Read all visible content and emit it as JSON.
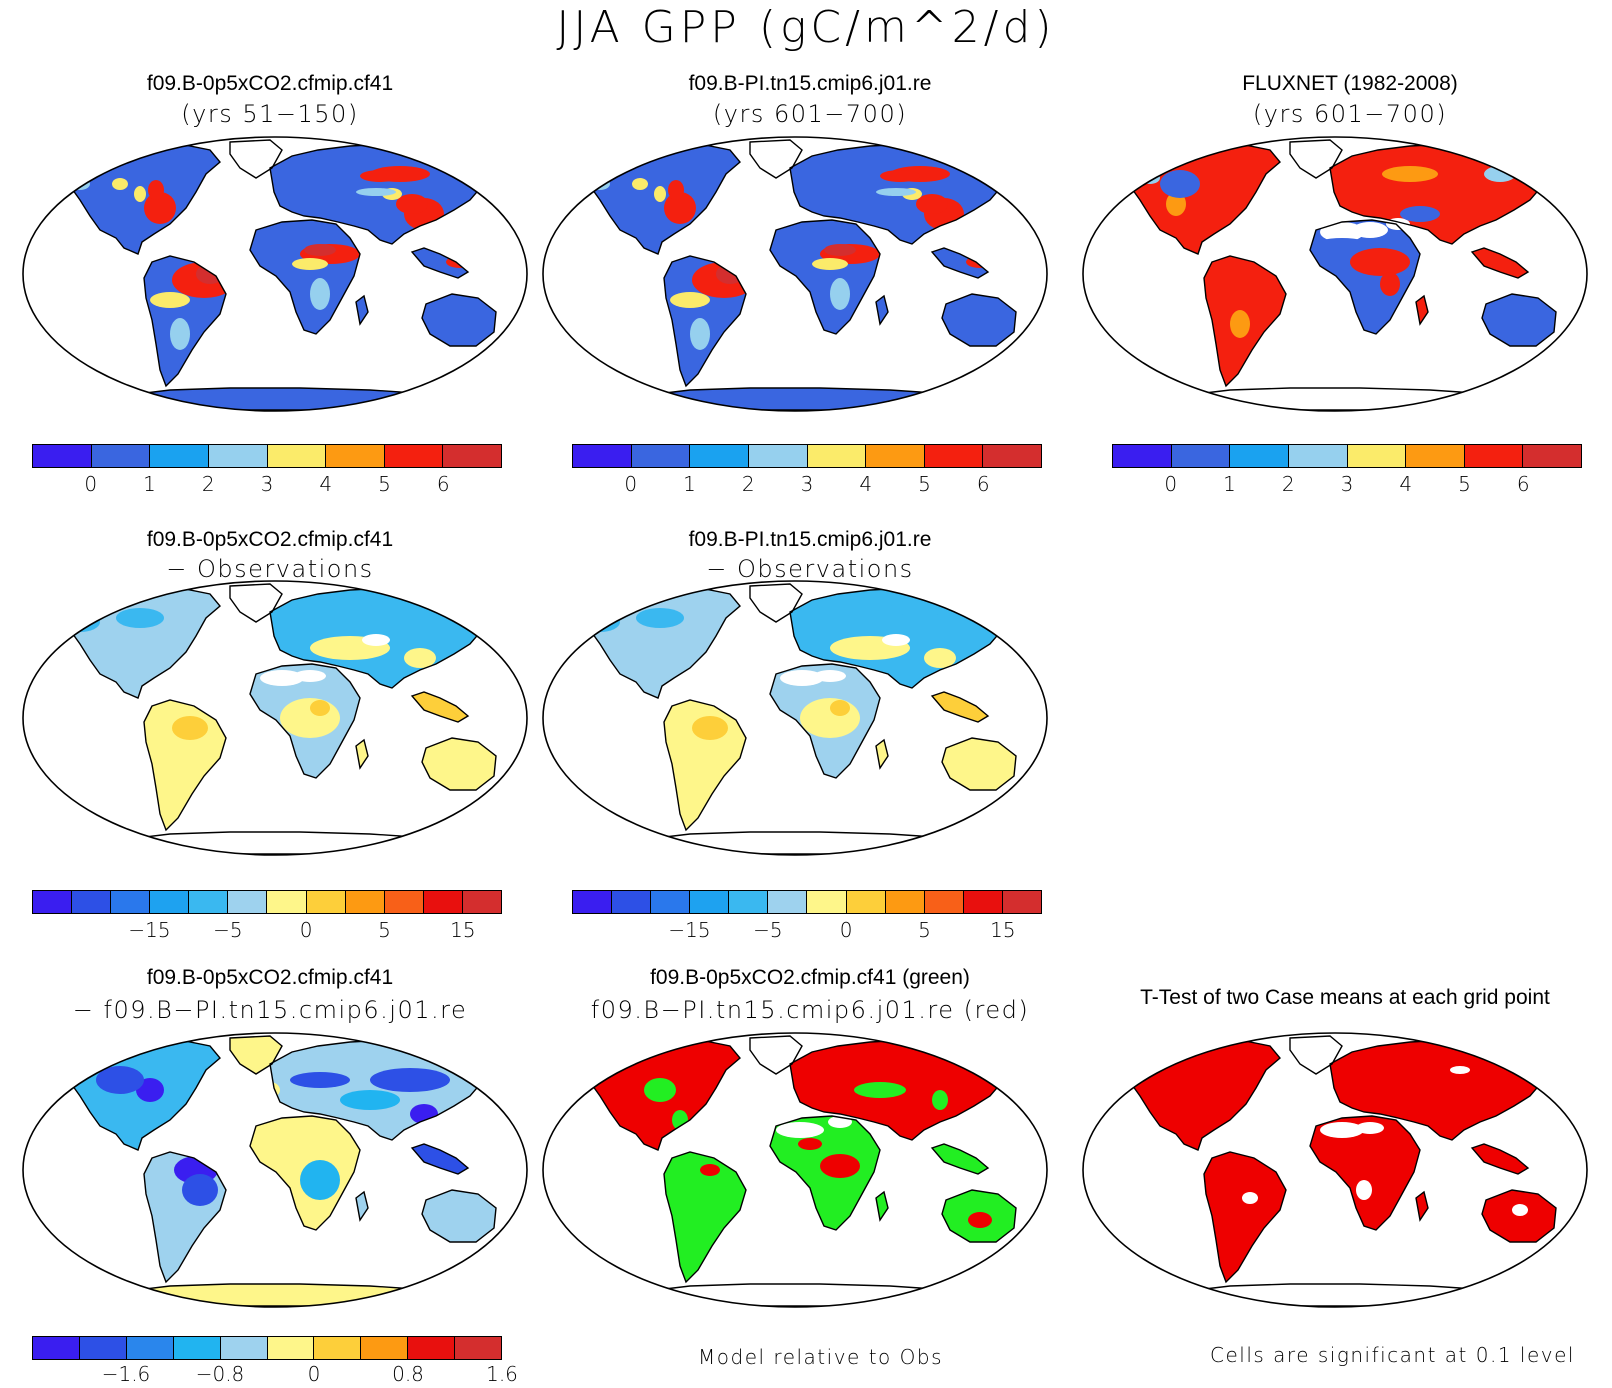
{
  "title": "JJA GPP (gC/m^2/d)",
  "panels": [
    {
      "id": "p1",
      "title": "f09.B-0p5xCO2.cfmip.cf41",
      "subtitle": "(yrs 51−150)",
      "style": "abs"
    },
    {
      "id": "p2",
      "title": "f09.B-PI.tn15.cmip6.j01.re",
      "subtitle": "(yrs 601−700)",
      "style": "abs"
    },
    {
      "id": "p3",
      "title": "FLUXNET (1982-2008)",
      "subtitle": "(yrs 601−700)",
      "style": "obs"
    },
    {
      "id": "p4",
      "title": "f09.B-0p5xCO2.cfmip.cf41",
      "subtitle": "− Observations",
      "style": "diff"
    },
    {
      "id": "p5",
      "title": "f09.B-PI.tn15.cmip6.j01.re",
      "subtitle": "− Observations",
      "style": "diff"
    },
    {
      "id": "p6",
      "title": "f09.B-0p5xCO2.cfmip.cf41",
      "subtitle": "− f09.B−PI.tn15.cmip6.j01.re",
      "style": "cdiff"
    },
    {
      "id": "p7",
      "title": "f09.B-0p5xCO2.cfmip.cf41 (green)",
      "subtitle": "f09.B−PI.tn15.cmip6.j01.re (red)",
      "style": "rg"
    },
    {
      "id": "p8",
      "title": "T-Test of two Case means at each grid point",
      "subtitle": "",
      "style": "ttest"
    }
  ],
  "colorbars": {
    "abs": {
      "colors": [
        "#3a1ef0",
        "#3a66e0",
        "#1aa2f0",
        "#96d0ee",
        "#fbeb6a",
        "#fd9a12",
        "#f4200f",
        "#d42e2e"
      ],
      "ticks": [
        "0",
        "1",
        "2",
        "3",
        "4",
        "5",
        "6"
      ]
    },
    "diff": {
      "colors": [
        "#3a1ef0",
        "#2d50e6",
        "#2a78ec",
        "#1ea2f0",
        "#3ab8f0",
        "#9ed2ee",
        "#fef68a",
        "#fdcf3a",
        "#fd9a12",
        "#f86018",
        "#e8100e",
        "#d42e2e"
      ],
      "ticks": [
        "−15",
        "−5",
        "0",
        "5",
        "15"
      ]
    },
    "cdiff": {
      "colors": [
        "#3a1ef0",
        "#2d50e6",
        "#2a86ec",
        "#21b4f0",
        "#9ed2ee",
        "#fef68a",
        "#fdcf3a",
        "#fd9a12",
        "#e8100e",
        "#d42e2e"
      ],
      "ticks": [
        "−1.6",
        "−0.8",
        "0",
        "0.8",
        "1.6"
      ]
    }
  },
  "notes": {
    "rg": "Model relative to Obs",
    "ttest": "Cells are significant at 0.1 level"
  }
}
